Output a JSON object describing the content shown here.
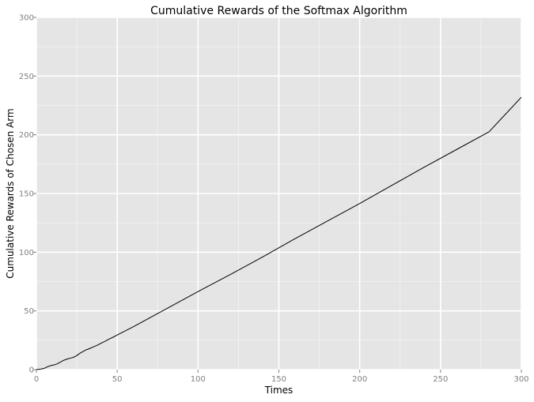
{
  "chart_data": {
    "type": "line",
    "title": "Cumulative Rewards of the Softmax Algorithm",
    "xlabel": "Times",
    "ylabel": "Cumulative Rewards of Chosen Arm",
    "xlim": [
      0,
      300
    ],
    "ylim": [
      0,
      300
    ],
    "x_ticks": [
      0,
      50,
      100,
      150,
      200,
      250,
      300
    ],
    "y_ticks": [
      0,
      50,
      100,
      150,
      200,
      250,
      300
    ],
    "x_tick_labels": [
      "0",
      "50",
      "100",
      "150",
      "200",
      "250",
      "300"
    ],
    "y_tick_labels": [
      "0",
      "50",
      "100",
      "150",
      "200",
      "250",
      "300"
    ],
    "grid": true,
    "series": [
      {
        "x": [
          0,
          3,
          5,
          7,
          9,
          11,
          13,
          15,
          17,
          19,
          21,
          23,
          25,
          27,
          29,
          31,
          33,
          35,
          38,
          40,
          43,
          45,
          48,
          50,
          55,
          60,
          70,
          80,
          90,
          100,
          120,
          140,
          160,
          180,
          200,
          220,
          240,
          260,
          280,
          300
        ],
        "y": [
          0,
          0.5,
          1.2,
          2.5,
          3.5,
          4,
          5,
          6.5,
          8,
          9,
          9.8,
          10.5,
          12,
          14,
          15.5,
          17,
          18,
          19.2,
          21,
          22.5,
          24.5,
          26,
          28,
          29.5,
          33,
          36.5,
          44,
          51.5,
          59,
          66.5,
          81,
          96,
          111.5,
          126.5,
          141.5,
          157,
          172.5,
          187.5,
          202.5,
          232
        ]
      }
    ]
  },
  "colors": {
    "panel_background": "#e5e5e5",
    "grid_major": "#ffffff",
    "grid_minor": "#f2f2f2",
    "line": "#000000",
    "tick_text": "#7f7f7f"
  }
}
